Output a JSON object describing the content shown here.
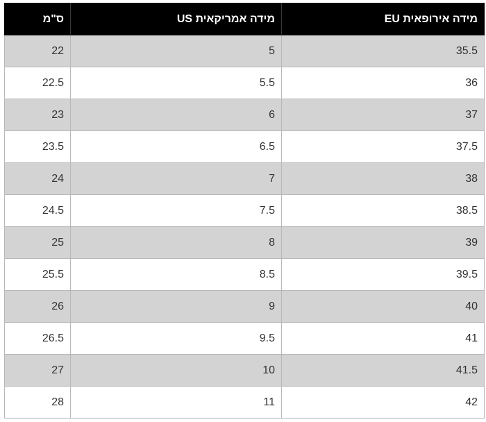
{
  "table": {
    "headers": {
      "eu": "מידה אירופאית EU",
      "us": "מידה אמריקאית US",
      "cm": "ס\"מ"
    },
    "rows": [
      {
        "eu": "35.5",
        "us": "5",
        "cm": "22"
      },
      {
        "eu": "36",
        "us": "5.5",
        "cm": "22.5"
      },
      {
        "eu": "37",
        "us": "6",
        "cm": "23"
      },
      {
        "eu": "37.5",
        "us": "6.5",
        "cm": "23.5"
      },
      {
        "eu": "38",
        "us": "7",
        "cm": "24"
      },
      {
        "eu": "38.5",
        "us": "7.5",
        "cm": "24.5"
      },
      {
        "eu": "39",
        "us": "8",
        "cm": "25"
      },
      {
        "eu": "39.5",
        "us": "8.5",
        "cm": "25.5"
      },
      {
        "eu": "40",
        "us": "9",
        "cm": "26"
      },
      {
        "eu": "41",
        "us": "9.5",
        "cm": "26.5"
      },
      {
        "eu": "41.5",
        "us": "10",
        "cm": "27"
      },
      {
        "eu": "42",
        "us": "11",
        "cm": "28"
      }
    ]
  },
  "colors": {
    "header_bg": "#000000",
    "header_text": "#ffffff",
    "shaded_row": "#d3d3d3",
    "plain_row": "#ffffff",
    "border": "#b8b8b8"
  }
}
